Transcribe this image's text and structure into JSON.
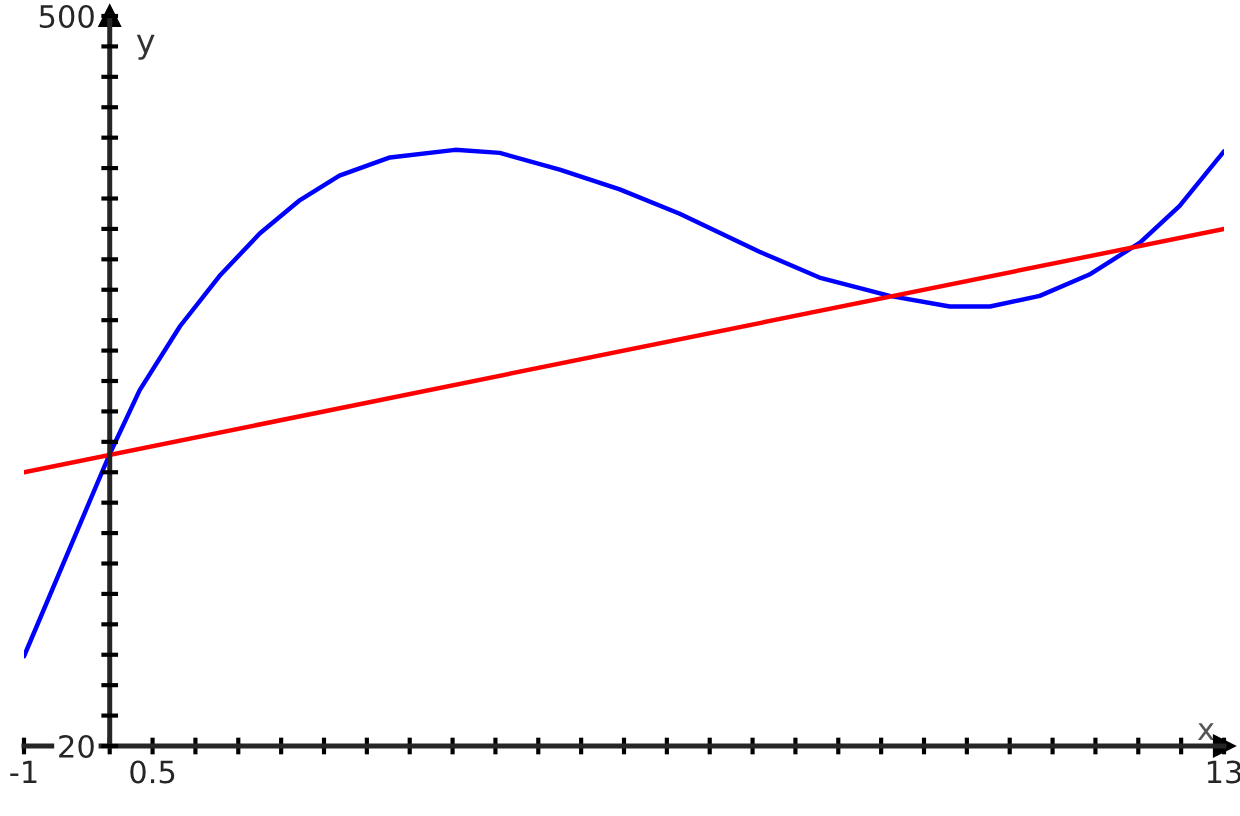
{
  "chart_data": {
    "type": "line",
    "xlabel": "x",
    "ylabel": "y",
    "xlim": [
      -1,
      13
    ],
    "ylim": [
      20,
      500
    ],
    "xticks": [
      -1,
      {
        "value": -0.5,
        "label": null
      },
      {
        "value": 0,
        "label": null
      },
      0.5,
      {
        "value": 1,
        "label": null
      },
      {
        "value": 1.5,
        "label": null
      },
      {
        "value": 2,
        "label": null
      },
      {
        "value": 2.5,
        "label": null
      },
      {
        "value": 3,
        "label": null
      },
      {
        "value": 3.5,
        "label": null
      },
      {
        "value": 4,
        "label": null
      },
      {
        "value": 4.5,
        "label": null
      },
      {
        "value": 5,
        "label": null
      },
      {
        "value": 5.5,
        "label": null
      },
      {
        "value": 6,
        "label": null
      },
      {
        "value": 6.5,
        "label": null
      },
      {
        "value": 7,
        "label": null
      },
      {
        "value": 7.5,
        "label": null
      },
      {
        "value": 8,
        "label": null
      },
      {
        "value": 8.5,
        "label": null
      },
      {
        "value": 9,
        "label": null
      },
      {
        "value": 9.5,
        "label": null
      },
      {
        "value": 10,
        "label": null
      },
      {
        "value": 10.5,
        "label": null
      },
      {
        "value": 11,
        "label": null
      },
      {
        "value": 11.5,
        "label": null
      },
      {
        "value": 12,
        "label": null
      },
      {
        "value": 12.5,
        "label": null
      },
      13
    ],
    "yticks": [
      20,
      {
        "value": 40,
        "label": null
      },
      {
        "value": 60,
        "label": null
      },
      {
        "value": 80,
        "label": null
      },
      {
        "value": 100,
        "label": null
      },
      {
        "value": 120,
        "label": null
      },
      {
        "value": 140,
        "label": null
      },
      {
        "value": 160,
        "label": null
      },
      {
        "value": 180,
        "label": null
      },
      {
        "value": 200,
        "label": null
      },
      {
        "value": 220,
        "label": null
      },
      {
        "value": 240,
        "label": null
      },
      {
        "value": 260,
        "label": null
      },
      {
        "value": 280,
        "label": null
      },
      {
        "value": 300,
        "label": null
      },
      {
        "value": 320,
        "label": null
      },
      {
        "value": 340,
        "label": null
      },
      {
        "value": 360,
        "label": null
      },
      {
        "value": 380,
        "label": null
      },
      {
        "value": 400,
        "label": null
      },
      {
        "value": 420,
        "label": null
      },
      {
        "value": 440,
        "label": null
      },
      {
        "value": 460,
        "label": null
      },
      {
        "value": 480,
        "label": null
      },
      500
    ],
    "grid": false,
    "legend": false,
    "series": [
      {
        "color": "#0000ff",
        "x": [
          -1,
          0,
          0.35,
          0.82,
          1.28,
          1.75,
          2.22,
          2.68,
          3.27,
          4.03,
          4.55,
          5.25,
          5.95,
          6.65,
          7.58,
          8.28,
          9.1,
          9.8,
          10.27,
          10.85,
          11.43,
          12.02,
          12.48,
          13
        ],
        "values": [
          79,
          212,
          254,
          296,
          329,
          357,
          379,
          395,
          407,
          412,
          410,
          399,
          386,
          370,
          345,
          328,
          316,
          309,
          309,
          316,
          330,
          351,
          375,
          411
        ]
      },
      {
        "color": "#ff0000",
        "x": [
          -1,
          13
        ],
        "values": [
          200,
          360
        ]
      }
    ]
  }
}
